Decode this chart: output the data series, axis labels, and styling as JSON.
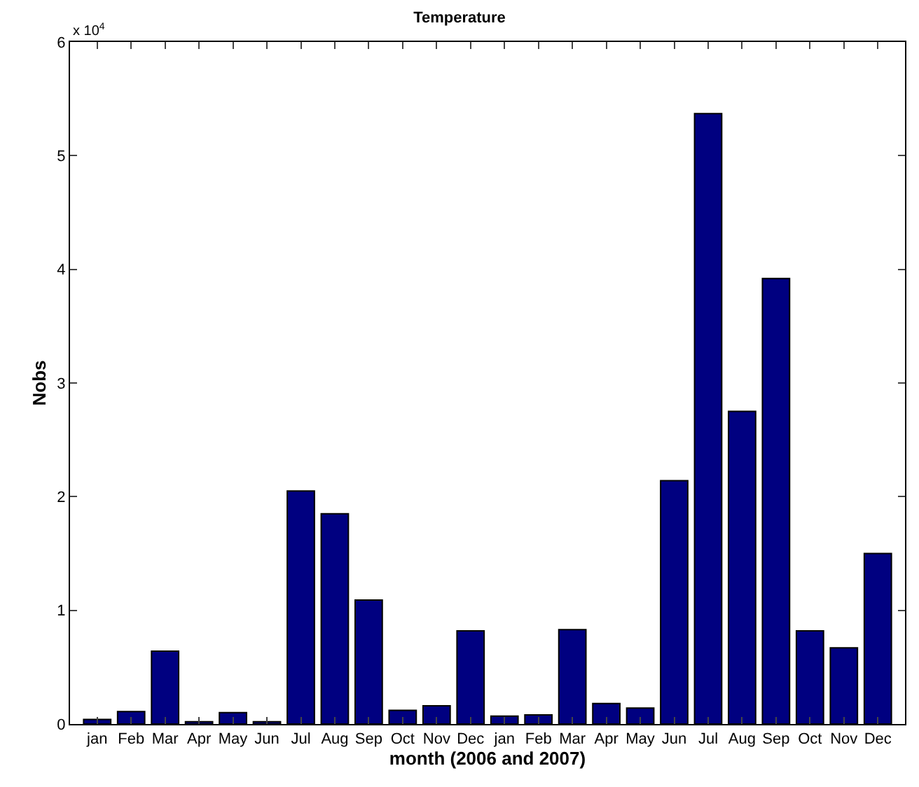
{
  "chart_data": {
    "type": "bar",
    "title": "Temperature",
    "xlabel": "month (2006 and 2007)",
    "ylabel": "Nobs",
    "categories": [
      "jan",
      "Feb",
      "Mar",
      "Apr",
      "May",
      "Jun",
      "Jul",
      "Aug",
      "Sep",
      "Oct",
      "Nov",
      "Dec",
      "jan",
      "Feb",
      "Mar",
      "Apr",
      "May",
      "Jun",
      "Jul",
      "Aug",
      "Sep",
      "Oct",
      "Nov",
      "Dec"
    ],
    "values": [
      0.04,
      0.11,
      0.64,
      0.02,
      0.1,
      0.02,
      2.05,
      1.85,
      1.09,
      0.12,
      0.16,
      0.82,
      0.07,
      0.08,
      0.83,
      0.18,
      0.14,
      2.14,
      5.37,
      2.75,
      3.92,
      0.82,
      0.67,
      1.5
    ],
    "color": "#000080",
    "ylim": [
      0,
      6
    ],
    "yticks": [
      0,
      1,
      2,
      3,
      4,
      5,
      6
    ],
    "annotations": [
      "x 10$^{4}$"
    ]
  }
}
